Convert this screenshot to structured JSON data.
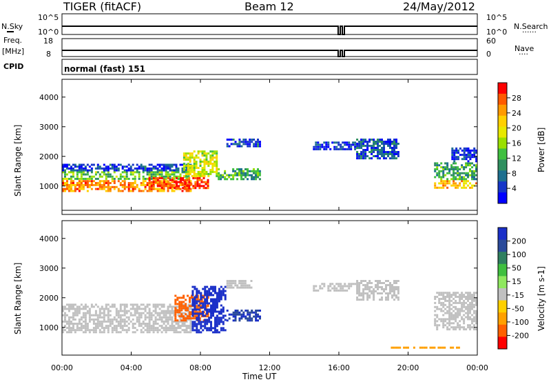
{
  "header": {
    "station": "TIGER (fitACF)",
    "beam": "Beam 12",
    "date": "24/May/2012"
  },
  "meta_panels": {
    "nsky_label": "N.Sky",
    "nsearch_label": "N.Search",
    "freq_label": "Freq.",
    "freq_unit": "[MHz]",
    "nave_label": "Nave",
    "cpid_label": "CPID",
    "cpid_value": "normal (fast) 151",
    "noise_ticks_left": [
      "10^5",
      "10^0"
    ],
    "noise_ticks_right": [
      "10^5",
      "10^0"
    ],
    "freq_ticks": [
      "18",
      "8"
    ],
    "nave_ticks": [
      "60",
      "0"
    ]
  },
  "colorbars": {
    "power": {
      "label": "Power [dB]",
      "ticks": [
        "28",
        "24",
        "20",
        "16",
        "12",
        "8",
        "4"
      ],
      "colors": [
        "#ff0000",
        "#ff5a00",
        "#ff9a00",
        "#ffd000",
        "#e8e800",
        "#9adf00",
        "#3fbf3f",
        "#2f8f5f",
        "#1d6f8f",
        "#1536c8",
        "#0000ff"
      ]
    },
    "velocity": {
      "label": "Velocity [m s-1]",
      "ticks": [
        "200",
        "100",
        "50",
        "15",
        "-15",
        "-50",
        "-100",
        "-200"
      ],
      "colors": [
        "#1a2fc8",
        "#2a4a9a",
        "#2f7f5f",
        "#3fbf3f",
        "#8fe85f",
        "#c0c0c0",
        "#ffd000",
        "#ffa000",
        "#ff6000",
        "#ff0000"
      ]
    }
  },
  "chart_data": [
    {
      "type": "heatmap",
      "title": "Power",
      "ylabel": "Slant Range [km]",
      "ylim": [
        180,
        4600
      ],
      "yticks": [
        "4000",
        "3000",
        "2000",
        "1000"
      ],
      "xlim": [
        0,
        24
      ],
      "xticks": [
        "00:00",
        "04:00",
        "08:00",
        "12:00",
        "16:00",
        "20:00",
        "00:00"
      ],
      "cbar_label": "Power [dB]",
      "bands": [
        {
          "t0": 0,
          "t1": 7.5,
          "r0": 800,
          "r1": 1200,
          "v": 24
        },
        {
          "t0": 0,
          "t1": 7.5,
          "r0": 1200,
          "r1": 1500,
          "v": 14
        },
        {
          "t0": 0,
          "t1": 7.5,
          "r0": 1500,
          "r1": 1750,
          "v": 6
        },
        {
          "t0": 5,
          "t1": 8.5,
          "r0": 900,
          "r1": 1300,
          "v": 28
        },
        {
          "t0": 7,
          "t1": 9,
          "r0": 1300,
          "r1": 2200,
          "v": 18
        },
        {
          "t0": 9,
          "t1": 11.5,
          "r0": 1200,
          "r1": 1600,
          "v": 12
        },
        {
          "t0": 9.5,
          "t1": 11.5,
          "r0": 2300,
          "r1": 2600,
          "v": 6
        },
        {
          "t0": 14.5,
          "t1": 17,
          "r0": 2200,
          "r1": 2500,
          "v": 5
        },
        {
          "t0": 17,
          "t1": 19.5,
          "r0": 1900,
          "r1": 2600,
          "v": 7
        },
        {
          "t0": 21.5,
          "t1": 24,
          "r0": 900,
          "r1": 1200,
          "v": 22
        },
        {
          "t0": 21.5,
          "t1": 24,
          "r0": 1200,
          "r1": 1800,
          "v": 12
        },
        {
          "t0": 22.5,
          "t1": 24,
          "r0": 1800,
          "r1": 2300,
          "v": 5
        }
      ]
    },
    {
      "type": "heatmap",
      "title": "Velocity",
      "ylabel": "Slant Range [km]",
      "xlabel": "Time UT",
      "ylim": [
        180,
        4600
      ],
      "yticks": [
        "4000",
        "3000",
        "2000",
        "1000"
      ],
      "xlim": [
        0,
        24
      ],
      "xticks": [
        "00:00",
        "04:00",
        "08:00",
        "12:00",
        "16:00",
        "20:00",
        "00:00"
      ],
      "cbar_label": "Velocity [m s-1]",
      "bands": [
        {
          "t0": 0,
          "t1": 7.5,
          "r0": 800,
          "r1": 1800,
          "v": 0
        },
        {
          "t0": 6.5,
          "t1": 8.5,
          "r0": 1200,
          "r1": 2100,
          "v": -100
        },
        {
          "t0": 7.5,
          "t1": 9.5,
          "r0": 800,
          "r1": 2400,
          "v": 200
        },
        {
          "t0": 9.5,
          "t1": 11.5,
          "r0": 1200,
          "r1": 1600,
          "v": 150
        },
        {
          "t0": 9.5,
          "t1": 11,
          "r0": 2300,
          "r1": 2600,
          "v": 0
        },
        {
          "t0": 14.5,
          "t1": 17,
          "r0": 2200,
          "r1": 2500,
          "v": 0
        },
        {
          "t0": 17,
          "t1": 19.5,
          "r0": 1900,
          "r1": 2600,
          "v": 0
        },
        {
          "t0": 21.5,
          "t1": 24,
          "r0": 900,
          "r1": 2200,
          "v": 0
        },
        {
          "t0": 19,
          "t1": 23,
          "r0": 250,
          "r1": 350,
          "v": -60
        }
      ]
    }
  ]
}
